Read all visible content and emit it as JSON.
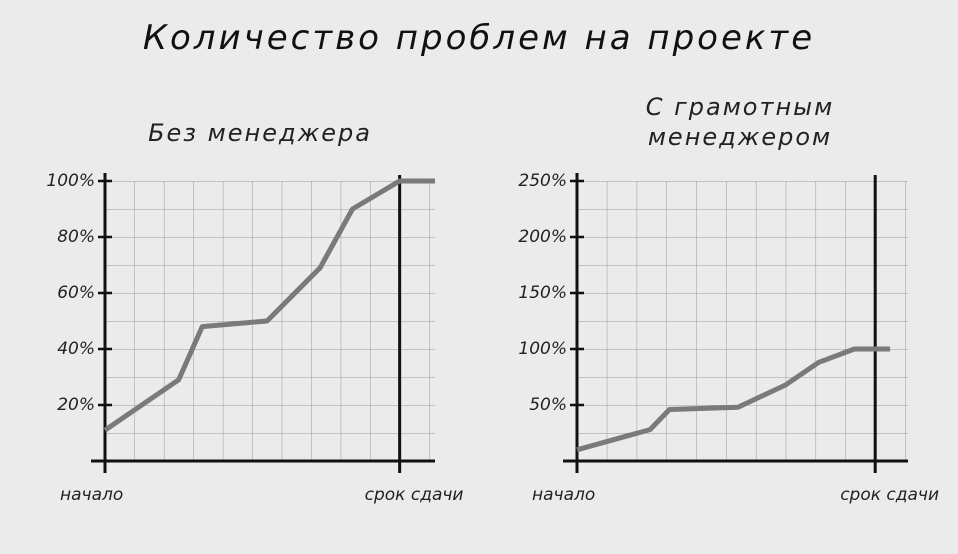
{
  "title": "Количество проблем на проекте",
  "chart_data": [
    {
      "type": "line",
      "title": "Без менеджера",
      "x": [
        0,
        2.5,
        3.3,
        5.5,
        7.3,
        8.4,
        10,
        11.2
      ],
      "series": [
        {
          "name": "Без менеджера",
          "color": "#7a7a7a",
          "values": [
            11,
            29,
            48,
            50,
            69,
            90,
            100,
            100
          ]
        }
      ],
      "xlim": [
        0,
        11.2
      ],
      "xticks": [
        {
          "value": 0,
          "label": "начало"
        },
        {
          "value": 10,
          "label": "срок сдачи"
        }
      ],
      "ylim": [
        0,
        100
      ],
      "yticks": [
        {
          "value": 20,
          "label": "20%"
        },
        {
          "value": 40,
          "label": "40%"
        },
        {
          "value": 60,
          "label": "60%"
        },
        {
          "value": 80,
          "label": "80%"
        },
        {
          "value": 100,
          "label": "100%"
        }
      ],
      "grid": true
    },
    {
      "type": "line",
      "title": "С грамотным менеджером",
      "x": [
        0,
        2.45,
        3.1,
        5.4,
        7,
        8.1,
        9.3,
        10.5
      ],
      "series": [
        {
          "name": "С грамотным менеджером",
          "color": "#7a7a7a",
          "values": [
            10,
            28,
            46,
            48,
            68,
            88,
            100,
            100
          ]
        }
      ],
      "xlim": [
        0,
        11.1
      ],
      "xticks": [
        {
          "value": 0,
          "label": "начало"
        },
        {
          "value": 10,
          "label": "срок сдачи"
        }
      ],
      "ylim": [
        0,
        250
      ],
      "yticks": [
        {
          "value": 50,
          "label": "50%"
        },
        {
          "value": 100,
          "label": "100%"
        },
        {
          "value": 150,
          "label": "150%"
        },
        {
          "value": 200,
          "label": "200%"
        },
        {
          "value": 250,
          "label": "250%"
        }
      ],
      "grid": true
    }
  ]
}
